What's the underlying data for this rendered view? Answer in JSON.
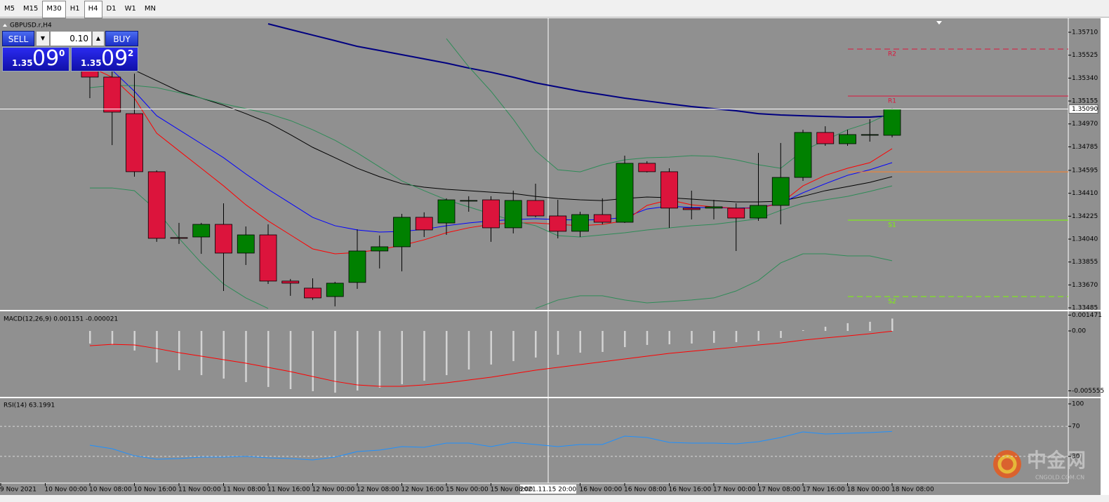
{
  "toolbar": {
    "timeframes": [
      "M5",
      "M15",
      "M30",
      "H1",
      "H4",
      "D1",
      "W1",
      "MN"
    ],
    "pressed": [
      false,
      false,
      true,
      false,
      true,
      false,
      false,
      false
    ]
  },
  "trade_panel": {
    "sell": "SELL",
    "lot": "0.10",
    "buy": "BUY",
    "bid": {
      "big": "1.35",
      "pips": "09",
      "point": "0"
    },
    "ask": {
      "big": "1.35",
      "pips": "09",
      "point": "2"
    }
  },
  "crosshair_time": "2021.11.15 20:00",
  "watermark": {
    "name": "中金网",
    "site": "CNGOLD.COM.CN"
  },
  "chart_data": [
    {
      "type": "candlestick",
      "title": "GBPUSD.r,H4",
      "up_color": "#008000",
      "down_color": "#dc143c",
      "xticks": [
        {
          "value": -4,
          "label": "9 Nov 2021"
        },
        {
          "value": -2,
          "label": "10 Nov 00:00"
        },
        {
          "value": 0,
          "label": "10 Nov 08:00"
        },
        {
          "value": 2,
          "label": "10 Nov 16:00"
        },
        {
          "value": 4,
          "label": "11 Nov 00:00"
        },
        {
          "value": 6,
          "label": "11 Nov 08:00"
        },
        {
          "value": 8,
          "label": "11 Nov 16:00"
        },
        {
          "value": 10,
          "label": "12 Nov 00:00"
        },
        {
          "value": 12,
          "label": "12 Nov 08:00"
        },
        {
          "value": 14,
          "label": "12 Nov 16:00"
        },
        {
          "value": 16,
          "label": "15 Nov 00:00"
        },
        {
          "value": 18,
          "label": "15 Nov 08:00"
        },
        {
          "value": 22,
          "label": "16 Nov 00:00"
        },
        {
          "value": 24,
          "label": "16 Nov 08:00"
        },
        {
          "value": 26,
          "label": "16 Nov 16:00"
        },
        {
          "value": 28,
          "label": "17 Nov 00:00"
        },
        {
          "value": 30,
          "label": "17 Nov 08:00"
        },
        {
          "value": 32,
          "label": "17 Nov 16:00"
        },
        {
          "value": 34,
          "label": "18 Nov 00:00"
        },
        {
          "value": 36,
          "label": "18 Nov 08:00"
        }
      ],
      "open": [
        1.35404,
        1.35348,
        1.35053,
        1.34584,
        1.34052,
        1.34057,
        1.34159,
        1.33927,
        1.34074,
        1.33701,
        1.33644,
        1.33576,
        1.3369,
        1.33944,
        1.33978,
        1.34216,
        1.3417,
        1.34352,
        1.34357,
        1.34131,
        1.34352,
        1.34227,
        1.34103,
        1.34238,
        1.34176,
        1.34652,
        1.34584,
        1.3429,
        1.3429,
        1.3429,
        1.3421,
        1.34312,
        1.34538,
        1.34901,
        1.3481,
        1.34884,
        1.34878
      ],
      "high": [
        1.35461,
        1.35433,
        1.35376,
        1.34595,
        1.34171,
        1.34171,
        1.34329,
        1.34142,
        1.34159,
        1.33718,
        1.33723,
        1.33695,
        1.34119,
        1.34069,
        1.34244,
        1.34256,
        1.34369,
        1.34386,
        1.34386,
        1.34431,
        1.34487,
        1.34357,
        1.34261,
        1.34369,
        1.34714,
        1.34669,
        1.34612,
        1.34431,
        1.34357,
        1.34329,
        1.34736,
        1.34816,
        1.34923,
        1.34951,
        1.34923,
        1.35008,
        1.35095
      ],
      "low": [
        1.35178,
        1.34799,
        1.34544,
        1.34018,
        1.34001,
        1.33921,
        1.33621,
        1.33831,
        1.33678,
        1.33582,
        1.33548,
        1.33497,
        1.33638,
        1.33803,
        1.3378,
        1.34057,
        1.34074,
        1.34261,
        1.34018,
        1.34086,
        1.34216,
        1.34046,
        1.34057,
        1.34159,
        1.3417,
        1.34578,
        1.34131,
        1.34199,
        1.34199,
        1.33944,
        1.34187,
        1.34159,
        1.3451,
        1.34793,
        1.34793,
        1.34827,
        1.34861
      ],
      "close": [
        1.35348,
        1.35065,
        1.34584,
        1.34046,
        1.34046,
        1.34159,
        1.33927,
        1.34074,
        1.33701,
        1.33684,
        1.33565,
        1.33684,
        1.33944,
        1.33978,
        1.34216,
        1.34114,
        1.34357,
        1.34352,
        1.34131,
        1.34352,
        1.34227,
        1.34103,
        1.34238,
        1.34176,
        1.34652,
        1.34584,
        1.3429,
        1.34278,
        1.34301,
        1.3421,
        1.34312,
        1.34538,
        1.34901,
        1.3481,
        1.34884,
        1.34884,
        1.3509
      ],
      "series": [
        {
          "color": "#000080",
          "width": 2,
          "values": [
            null,
            null,
            null,
            null,
            null,
            null,
            null,
            null,
            1.35778,
            1.35732,
            1.35687,
            1.35642,
            1.35596,
            1.35563,
            1.35529,
            1.35495,
            1.35461,
            1.35421,
            1.35387,
            1.35347,
            1.35302,
            1.35268,
            1.35234,
            1.35206,
            1.35178,
            1.35155,
            1.35132,
            1.3511,
            1.35093,
            1.35076,
            1.35053,
            1.35042,
            1.35036,
            1.3503,
            1.35025,
            1.35025,
            1.35036
          ]
        },
        {
          "color": "#000000",
          "width": 1,
          "values": [
            1.35517,
            1.35472,
            1.35404,
            1.35319,
            1.35234,
            1.35178,
            1.35121,
            1.35053,
            1.3498,
            1.34883,
            1.34781,
            1.34697,
            1.34612,
            1.34544,
            1.34487,
            1.34459,
            1.34442,
            1.34431,
            1.34419,
            1.34408,
            1.34385,
            1.34368,
            1.34357,
            1.34351,
            1.34368,
            1.3438,
            1.34374,
            1.34363,
            1.34351,
            1.3434,
            1.3434,
            1.34346,
            1.34385,
            1.34431,
            1.34464,
            1.34498,
            1.34544
          ]
        },
        {
          "color": "#0000ff",
          "width": 1,
          "values": [
            1.35489,
            1.35404,
            1.35234,
            1.35036,
            1.34923,
            1.3481,
            1.34697,
            1.34566,
            1.34442,
            1.34329,
            1.34215,
            1.34148,
            1.34114,
            1.34097,
            1.34102,
            1.34119,
            1.34148,
            1.3417,
            1.34187,
            1.34198,
            1.34204,
            1.34198,
            1.34193,
            1.34198,
            1.34215,
            1.34283,
            1.34306,
            1.34295,
            1.34295,
            1.34289,
            1.34295,
            1.34329,
            1.34414,
            1.34487,
            1.34555,
            1.346,
            1.34657
          ]
        },
        {
          "color": "#ff0000",
          "width": 1,
          "values": [
            1.35432,
            1.35347,
            1.35178,
            1.34895,
            1.34753,
            1.34612,
            1.3447,
            1.34317,
            1.34187,
            1.34074,
            1.33961,
            1.33921,
            1.33932,
            1.33955,
            1.33989,
            1.34034,
            1.34091,
            1.34131,
            1.34159,
            1.3417,
            1.3417,
            1.34159,
            1.34148,
            1.34159,
            1.34187,
            1.34312,
            1.34357,
            1.34317,
            1.343,
            1.34289,
            1.34289,
            1.34329,
            1.3447,
            1.34555,
            1.34612,
            1.34657,
            1.3477
          ]
        },
        {
          "color": "#2e8b57",
          "width": 1,
          "values": [
            null,
            null,
            null,
            null,
            null,
            null,
            null,
            null,
            null,
            null,
            null,
            null,
            null,
            null,
            null,
            null,
            1.35659,
            1.35432,
            1.35234,
            1.35008,
            1.34753,
            1.346,
            1.34583,
            1.3464,
            1.3468,
            1.34697,
            1.34702,
            1.34714,
            1.34708,
            1.3468,
            1.3464,
            1.34612,
            1.34753,
            1.34838,
            1.34923,
            1.3498,
            1.35064
          ]
        },
        {
          "color": "#2e8b57",
          "width": 1,
          "values": [
            1.35263,
            1.3528,
            1.3528,
            1.35263,
            1.35223,
            1.35178,
            1.35132,
            1.35093,
            1.35053,
            1.34997,
            1.34923,
            1.34838,
            1.34736,
            1.34623,
            1.3451,
            1.34431,
            1.34357,
            1.343,
            1.34244,
            1.34187,
            1.34148,
            1.34068,
            1.34057,
            1.34074,
            1.34091,
            1.34114,
            1.34131,
            1.34148,
            1.34159,
            1.34181,
            1.34204,
            1.34272,
            1.34329,
            1.34357,
            1.34385,
            1.34425,
            1.3447
          ]
        },
        {
          "color": "#2e8b57",
          "width": 1,
          "values": [
            1.34453,
            1.34453,
            1.34431,
            1.34272,
            1.34046,
            1.33848,
            1.33678,
            1.33565,
            1.3348,
            null,
            null,
            null,
            null,
            null,
            null,
            null,
            null,
            null,
            null,
            null,
            1.3348,
            1.33548,
            1.33582,
            1.33582,
            1.33548,
            1.33525,
            1.33536,
            1.33548,
            1.33565,
            1.33621,
            1.33706,
            1.33848,
            1.33921,
            1.33921,
            1.33904,
            1.33904,
            1.33865
          ]
        }
      ],
      "pivots": [
        {
          "name": "R2",
          "value": 1.35574,
          "color": "#dc143c",
          "style": "dashed"
        },
        {
          "name": "R1",
          "value": 1.35195,
          "color": "#dc143c",
          "style": "solid"
        },
        {
          "value": 1.34583,
          "color": "#ff7f27",
          "style": "solid"
        },
        {
          "name": "S1",
          "value": 1.34193,
          "color": "#7cfc00",
          "style": "solid"
        },
        {
          "name": "S2",
          "value": 1.33576,
          "color": "#7cfc00",
          "style": "dashed"
        }
      ],
      "current_price": {
        "value": 1.3509,
        "label": "1.35090"
      },
      "ylim": [
        1.33474,
        1.35812
      ],
      "yticks": [
        {
          "value": 1.3571,
          "label": "1.35710"
        },
        1.35525,
        {
          "value": 1.3534,
          "label": "1.35340"
        },
        1.35155,
        {
          "value": 1.3497,
          "label": "1.34970"
        },
        1.34785,
        1.34595,
        {
          "value": 1.3441,
          "label": "1.34410"
        },
        1.34225,
        {
          "value": 1.3404,
          "label": "1.34040"
        },
        1.33855,
        {
          "value": 1.3367,
          "label": "1.33670"
        },
        1.33485
      ]
    },
    {
      "type": "macd",
      "title": "MACD(12,26,9) 0.001151 -0.000021",
      "color": "#d3d3d3",
      "values": [
        -0.00117,
        -0.0013,
        -0.00182,
        -0.00293,
        -0.00364,
        -0.0041,
        -0.00442,
        -0.00475,
        -0.0052,
        -0.0054,
        -0.00559,
        -0.00573,
        -0.00553,
        -0.00527,
        -0.00494,
        -0.00462,
        -0.0041,
        -0.00358,
        -0.00312,
        -0.0028,
        -0.00247,
        -0.00221,
        -0.00202,
        -0.00195,
        -0.0015,
        -0.0013,
        -0.00124,
        -0.00117,
        -0.00111,
        -0.00104,
        -0.00091,
        -0.00065,
        7e-05,
        0.00039,
        0.00072,
        0.00085,
        0.00115
      ],
      "series": [
        {
          "color": "#ff0000",
          "values": [
            -0.00137,
            -0.00124,
            -0.0013,
            -0.00163,
            -0.00202,
            -0.00234,
            -0.00267,
            -0.00299,
            -0.00338,
            -0.00377,
            -0.00423,
            -0.00468,
            -0.00501,
            -0.00514,
            -0.00514,
            -0.00501,
            -0.00481,
            -0.00455,
            -0.00429,
            -0.00397,
            -0.00364,
            -0.00338,
            -0.00312,
            -0.00286,
            -0.0026,
            -0.00234,
            -0.00208,
            -0.00189,
            -0.00169,
            -0.0015,
            -0.0013,
            -0.00111,
            -0.00085,
            -0.00065,
            -0.00046,
            -0.00026,
            -2.1e-05
          ]
        }
      ],
      "ylim": [
        -0.006115,
        0.001757
      ],
      "yticks": [
        0.001471,
        {
          "value": 0,
          "label": "0.00"
        },
        -0.005555
      ]
    },
    {
      "type": "line",
      "title": "RSI(14) 63.1991",
      "series": [
        {
          "color": "#1e90ff",
          "values": [
            44.9,
            40.2,
            30.8,
            26.2,
            27.1,
            29.0,
            29.0,
            29.9,
            28.0,
            27.1,
            25.2,
            29.0,
            36.4,
            38.3,
            43.0,
            42.1,
            47.7,
            47.7,
            43.0,
            48.6,
            45.8,
            43.0,
            45.8,
            45.8,
            57.0,
            55.1,
            48.6,
            47.7,
            47.7,
            46.7,
            49.5,
            55.1,
            62.6,
            59.8,
            60.7,
            61.7,
            63.2
          ]
        }
      ],
      "levels": [
        70,
        30
      ],
      "ylim": [
        0,
        100
      ],
      "yticks": [
        100,
        70,
        30
      ]
    }
  ]
}
